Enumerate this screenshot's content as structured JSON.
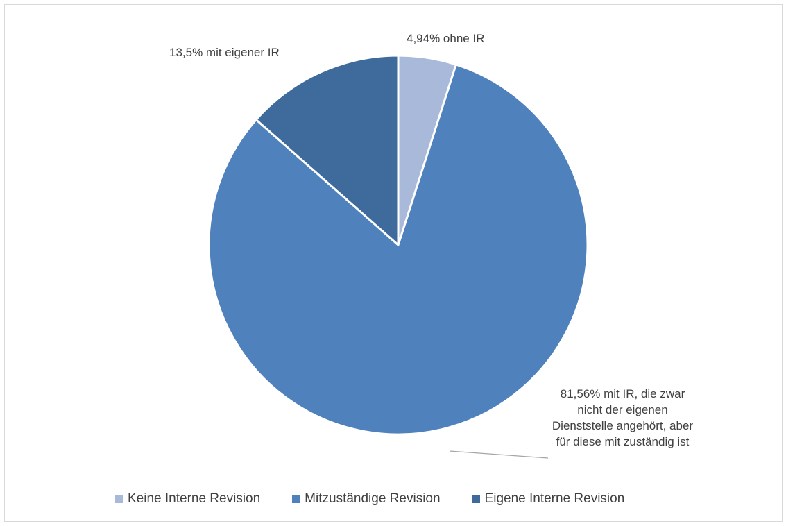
{
  "chart_data": {
    "type": "pie",
    "title": "",
    "categories": [
      "Keine Interne Revision",
      "Mitzuständige Revision",
      "Eigene Interne Revision"
    ],
    "values": [
      4.94,
      81.56,
      13.5
    ],
    "unit": "%",
    "colors": [
      "#a9b9d9",
      "#4f81bd",
      "#3f6a9c"
    ],
    "data_labels": [
      "4,94% ohne IR",
      "81,56% mit IR, die zwar nicht der eigenen Dienststelle angehört, aber für diese mit zuständig ist",
      "13,5% mit eigener IR"
    ],
    "legend_position": "bottom",
    "start_angle_deg": 0,
    "direction": "clockwise"
  }
}
